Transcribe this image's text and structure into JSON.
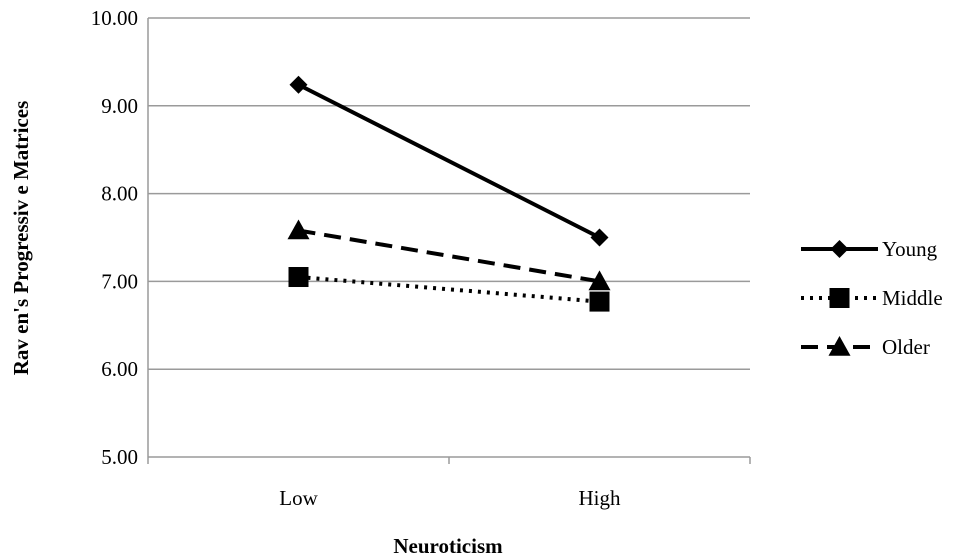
{
  "chart_data": {
    "type": "line",
    "categories": [
      "Low",
      "High"
    ],
    "series": [
      {
        "name": "Young",
        "values": [
          9.24,
          7.5
        ],
        "style": "solid",
        "marker": "diamond",
        "color": "#000000"
      },
      {
        "name": "Middle",
        "values": [
          7.05,
          6.77
        ],
        "style": "dotted",
        "marker": "square",
        "color": "#000000"
      },
      {
        "name": "Older",
        "values": [
          7.58,
          7.0
        ],
        "style": "dashed",
        "marker": "triangle",
        "color": "#000000"
      }
    ],
    "xlabel": "Neuroticism",
    "ylabel": "Rav en's Progressiv e Matrices",
    "ylim": [
      5.0,
      10.0
    ],
    "yticks": [
      "5.00",
      "6.00",
      "7.00",
      "8.00",
      "9.00",
      "10.00"
    ],
    "grid": true,
    "legend_position": "right"
  }
}
